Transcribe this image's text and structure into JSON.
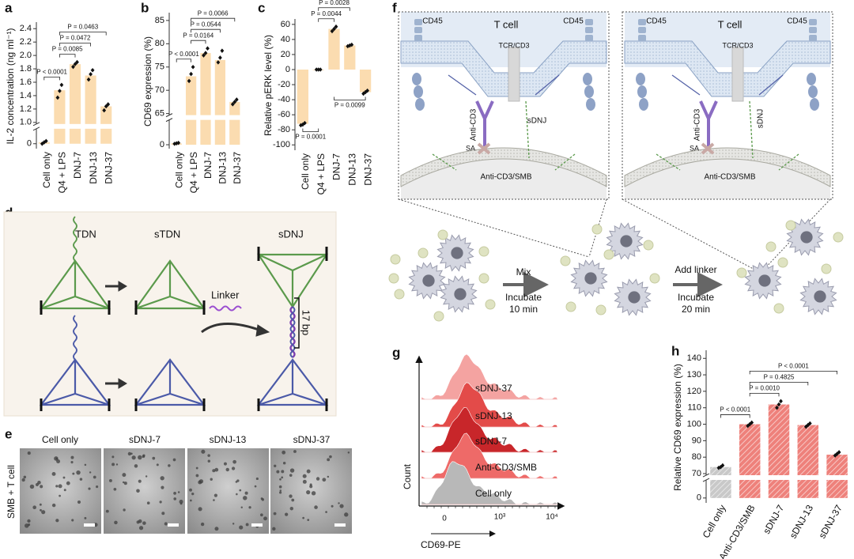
{
  "panel_labels": [
    "a",
    "b",
    "c",
    "d",
    "e",
    "f",
    "g",
    "h"
  ],
  "chart_data": [
    {
      "type": "bar",
      "ylabel": "IL-2 concentration (ng ml⁻¹)",
      "categories": [
        "Cell only",
        "Q4 + LPS",
        "DNJ-7",
        "DNJ-13",
        "DNJ-37"
      ],
      "values": [
        0.02,
        1.48,
        1.87,
        1.7,
        1.24
      ],
      "points": [
        [
          0,
          0.02,
          0.04
        ],
        [
          1.37,
          1.47,
          1.56
        ],
        [
          1.83,
          1.87,
          1.9
        ],
        [
          1.64,
          1.72,
          1.78
        ],
        [
          1.18,
          1.24,
          1.27
        ]
      ],
      "color": "#fbdcb0",
      "ylim": [
        -0.05,
        2.45
      ],
      "axis_break": true,
      "yticks": [
        0,
        {
          "value": 1,
          "label": "1.0"
        },
        1.2,
        1.4,
        1.6,
        1.8,
        {
          "value": 2,
          "label": "2.0"
        },
        2.2,
        2.4
      ],
      "annotations": [
        {
          "label": "P < 0.0001",
          "between": [
            0,
            1
          ]
        },
        {
          "label": "P = 0.0085",
          "between": [
            1,
            2
          ]
        },
        {
          "label": "P = 0.0472",
          "between": [
            1,
            3
          ]
        },
        {
          "label": "P = 0.0463",
          "between": [
            1,
            4
          ]
        }
      ]
    },
    {
      "type": "bar",
      "ylabel": "CD69 expression (%)",
      "categories": [
        "Cell only",
        "Q4 + LPS",
        "DNJ-7",
        "DNJ-13",
        "DNJ-37"
      ],
      "values": [
        0.3,
        73,
        78,
        76.5,
        67.5
      ],
      "points": [
        [
          0.2,
          0.3,
          0.4
        ],
        [
          72,
          73.5,
          75
        ],
        [
          77.5,
          78,
          79
        ],
        [
          76,
          77,
          78.5
        ],
        [
          67,
          67.5,
          68
        ]
      ],
      "color": "#fbdcb0",
      "ylim": [
        -0.5,
        86
      ],
      "axis_break": true,
      "yticks": [
        0,
        65,
        70,
        75,
        80,
        85
      ],
      "annotations": [
        {
          "label": "P < 0.0001",
          "between": [
            0,
            1
          ]
        },
        {
          "label": "P = 0.0164",
          "between": [
            1,
            2
          ]
        },
        {
          "label": "P = 0.0544",
          "between": [
            1,
            3
          ]
        },
        {
          "label": "P = 0.0066",
          "between": [
            1,
            4
          ]
        }
      ]
    },
    {
      "type": "bar",
      "ylabel": "Relative pERK level (%)",
      "categories": [
        "Cell only",
        "Q4 + LPS",
        "DNJ-7",
        "DNJ-13",
        "DNJ-37"
      ],
      "values": [
        -72,
        0,
        54,
        32,
        -30
      ],
      "points": [
        [
          -74,
          -73,
          -71
        ],
        [
          0,
          0,
          0
        ],
        [
          51,
          54,
          57
        ],
        [
          31,
          32,
          33
        ],
        [
          -32,
          -30,
          -28
        ]
      ],
      "color": "#fbdcb0",
      "ylim": [
        -105,
        63
      ],
      "axis_break": false,
      "yticks": [
        -100,
        -80,
        -60,
        -40,
        -20,
        0,
        20,
        40,
        60
      ],
      "annotations": [
        {
          "label": "P = 0.0044",
          "between": [
            1,
            2
          ]
        },
        {
          "label": "P = 0.0028",
          "between": [
            1,
            3
          ]
        },
        {
          "label": "P = 0.0001",
          "between": [
            0,
            1
          ],
          "side": "below"
        },
        {
          "label": "P = 0.0099",
          "between": [
            2,
            4
          ],
          "side": "below"
        }
      ]
    },
    {
      "type": "bar",
      "ylabel": "Relative CD69 expression (%)",
      "categories": [
        "Cell only",
        "Anti-CD3/SMB",
        "sDNJ-7",
        "sDNJ-13",
        "sDNJ-37"
      ],
      "values": [
        74,
        100,
        112,
        99.5,
        81.5
      ],
      "points": [
        [
          73.5,
          74,
          75
        ],
        [
          99,
          100,
          101
        ],
        [
          110,
          112,
          114
        ],
        [
          98.5,
          99.5,
          100.5
        ],
        [
          81,
          82,
          83
        ]
      ],
      "colors": [
        "#b5b5b5",
        "#e8574f",
        "#e8574f",
        "#e8574f",
        "#e8574f"
      ],
      "hatch": true,
      "ylim": [
        -2,
        143
      ],
      "axis_break": true,
      "yticks": [
        0,
        70,
        80,
        90,
        100,
        110,
        120,
        130,
        140
      ],
      "annotations": [
        {
          "label": "P < 0.0001",
          "between": [
            0,
            1
          ]
        },
        {
          "label": "P = 0.0010",
          "between": [
            1,
            2
          ]
        },
        {
          "label": "P = 0.4825",
          "between": [
            1,
            3
          ]
        },
        {
          "label": "P < 0.0001",
          "between": [
            1,
            4
          ]
        }
      ]
    }
  ],
  "panel_d": {
    "labels": [
      "TDN",
      "sTDN",
      "sDNJ"
    ],
    "linker": "Linker",
    "length": "17 bp"
  },
  "panel_e": {
    "columns": [
      "Cell only",
      "sDNJ-7",
      "sDNJ-13",
      "sDNJ-37"
    ],
    "row_label": "SMB + T cell"
  },
  "panel_f": {
    "boxes": [
      {
        "cell": "T cell",
        "cd45": [
          "CD45",
          "CD45"
        ],
        "tcr": "TCR/CD3",
        "antibody": "Anti-CD3",
        "sa": "SA",
        "sdnj": "sDNJ",
        "bead": "Anti-CD3/SMB"
      },
      {
        "cell": "T cell",
        "cd45": [
          "CD45",
          "CD45"
        ],
        "tcr": "TCR/CD3",
        "antibody": "Anti-CD3",
        "sa": "SA",
        "sdnj": "sDNJ",
        "bead": "Anti-CD3/SMB"
      }
    ],
    "steps": [
      {
        "action": "Mix",
        "condition": [
          "Incubate",
          "10 min"
        ]
      },
      {
        "action": "Add linker",
        "condition": [
          "Incubate",
          "20 min"
        ]
      }
    ]
  },
  "panel_g": {
    "x_label": "CD69-PE",
    "y_label": "Count",
    "xtick_labels": [
      "0",
      "10³",
      "10⁴"
    ],
    "series_labels": [
      "sDNJ-37",
      "sDNJ-13",
      "sDNJ-7",
      "Anti-CD3/SMB",
      "Cell only"
    ],
    "colors": [
      "#f4a3a1",
      "#e34b49",
      "#c8262a",
      "#ee6a68",
      "#b8b8b8"
    ]
  }
}
